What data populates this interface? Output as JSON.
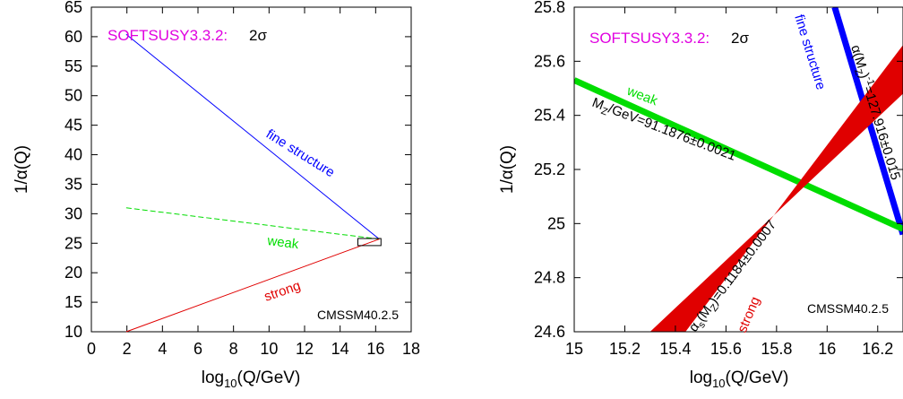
{
  "chart_data": [
    {
      "type": "line",
      "xlabel_main": "log",
      "xlabel_sub": "10",
      "xlabel_rest": "(Q/GeV)",
      "ylabel": "1/α(Q)",
      "xlim": [
        0,
        18
      ],
      "ylim": [
        10,
        65
      ],
      "xticks": [
        "0",
        "2",
        "4",
        "6",
        "8",
        "10",
        "12",
        "14",
        "16",
        "18"
      ],
      "yticks": [
        "10",
        "15",
        "20",
        "25",
        "30",
        "35",
        "40",
        "45",
        "50",
        "55",
        "60",
        "65"
      ],
      "grid": false,
      "header_label": "SOFTSUSY3.3.2:",
      "header_suffix": "2σ",
      "model_label": "CMSSM40.2.5",
      "series": [
        {
          "name": "fine structure",
          "color": "#0000ff",
          "x": [
            1.96,
            16.2
          ],
          "y": [
            60.4,
            25.7
          ]
        },
        {
          "name": "weak",
          "color": "#00dd00",
          "x": [
            1.96,
            16.2
          ],
          "y": [
            31.0,
            25.7
          ]
        },
        {
          "name": "strong",
          "color": "#e00000",
          "x": [
            1.96,
            16.2
          ],
          "y": [
            10.0,
            25.7
          ]
        }
      ],
      "zoom_box": {
        "x": [
          15.0,
          16.3
        ],
        "y": [
          24.6,
          25.8
        ]
      }
    },
    {
      "type": "line",
      "xlabel_main": "log",
      "xlabel_sub": "10",
      "xlabel_rest": "(Q/GeV)",
      "ylabel": "1/α(Q)",
      "xlim": [
        15,
        16.3
      ],
      "ylim": [
        24.6,
        25.8
      ],
      "xticks": [
        "15",
        "15.2",
        "15.4",
        "15.6",
        "15.8",
        "16",
        "16.2"
      ],
      "yticks": [
        "24.6",
        "24.8",
        "25",
        "25.2",
        "25.4",
        "25.6",
        "25.8"
      ],
      "grid": false,
      "header_label": "SOFTSUSY3.3.2:",
      "header_suffix": "2σ",
      "model_label": "CMSSM40.2.5",
      "series": [
        {
          "name": "fine structure",
          "color": "#0000ff",
          "x": [
            16.03,
            16.3
          ],
          "y": [
            25.8,
            24.96
          ]
        },
        {
          "name": "weak",
          "color": "#00dd00",
          "x": [
            15.0,
            16.3
          ],
          "y": [
            25.53,
            24.98
          ]
        },
        {
          "name": "strong",
          "color": "#e00000",
          "x_lower": [
            15.3,
            16.3
          ],
          "y_lower": [
            24.6,
            25.48
          ],
          "x_upper": [
            15.44,
            16.3
          ],
          "y_upper": [
            24.6,
            25.66
          ]
        }
      ],
      "annotations": {
        "alpha_mz": "α(M",
        "alpha_mz_sub": "Z",
        "alpha_mz_rest": ")",
        "alpha_mz_sup": "-1",
        "alpha_mz_value": "=127.916±0.015",
        "mz_prefix": "M",
        "mz_sub": "Z",
        "mz_value": "/GeV=91.1876±0.0021",
        "alphas_prefix": "α",
        "alphas_sub1": "s",
        "alphas_mid": "(M",
        "alphas_sub2": "Z",
        "alphas_value": ")=0.1184±0.0007"
      }
    }
  ]
}
